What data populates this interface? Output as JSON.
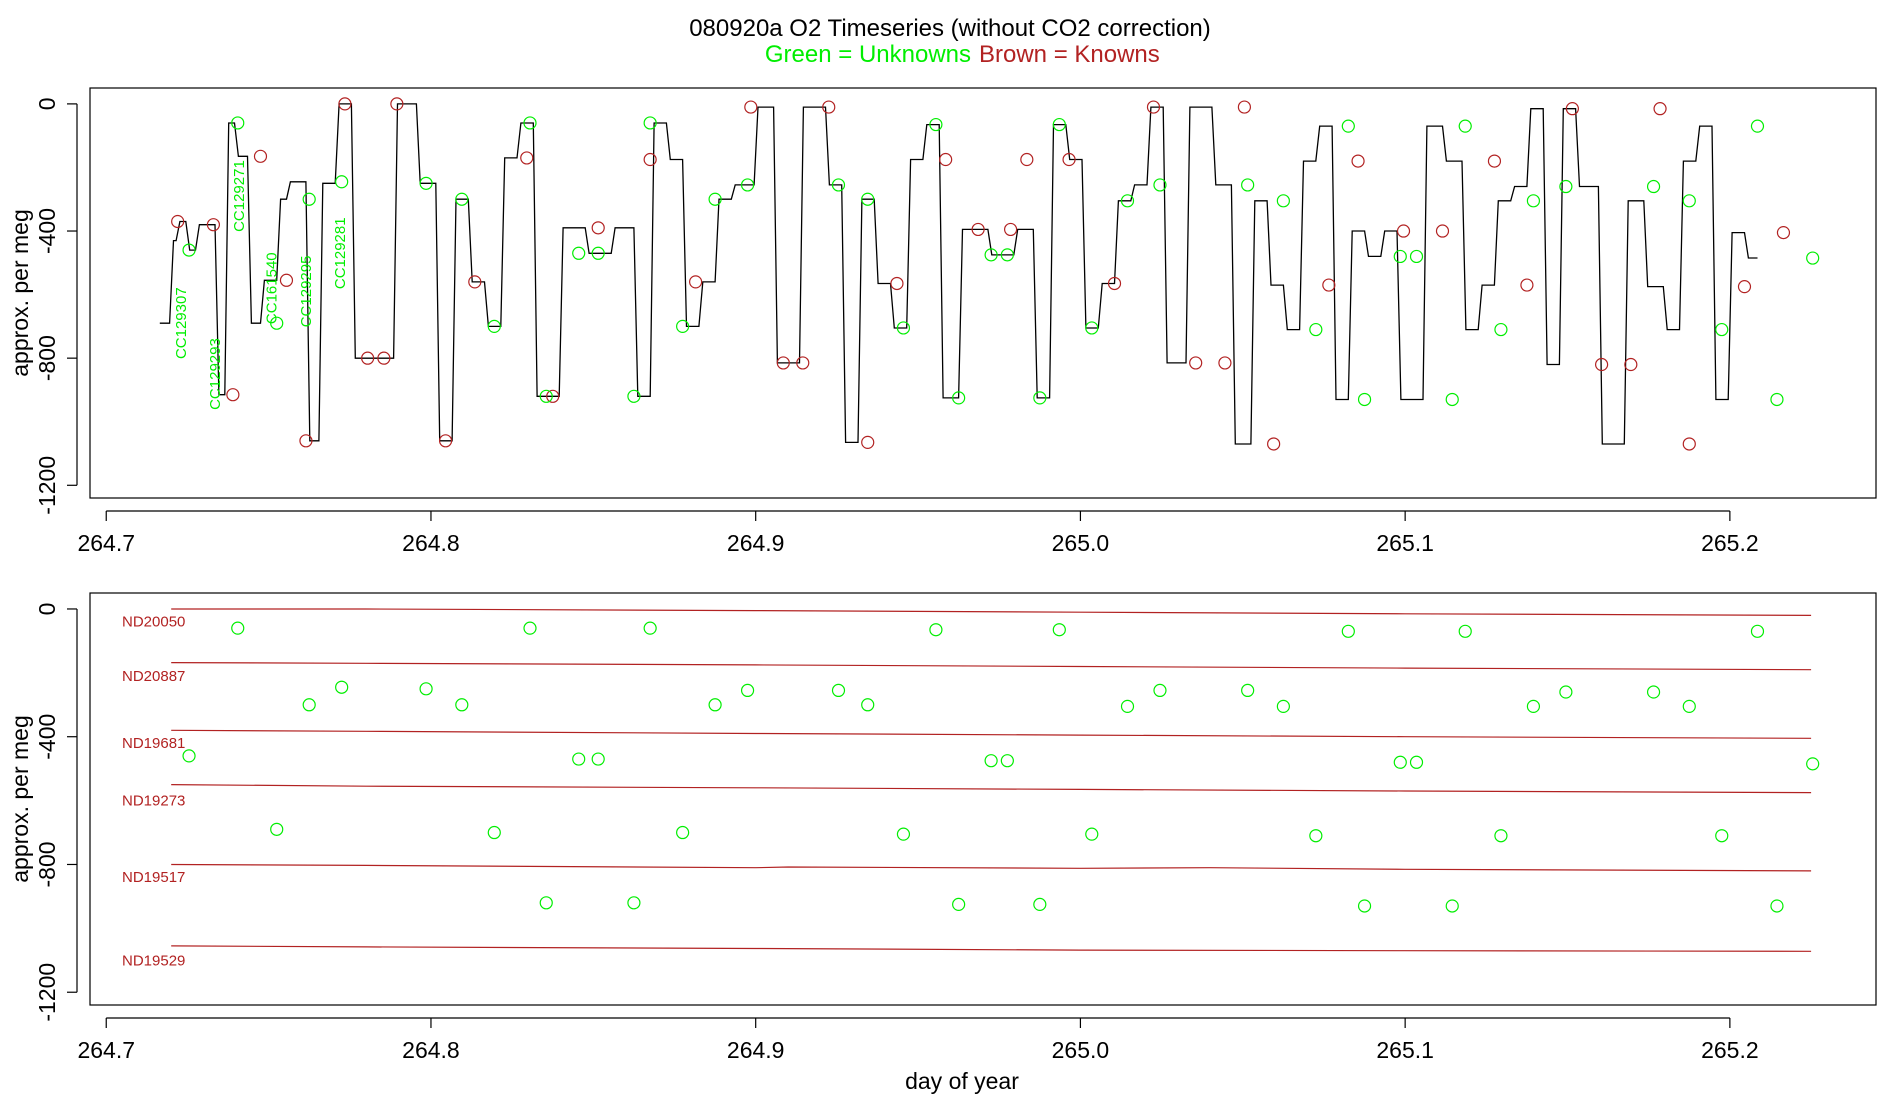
{
  "chart_data": [
    {
      "type": "line",
      "title": "080920a   O2 Timeseries (without CO2 correction)",
      "subtitle_green": "Green = Unknowns",
      "subtitle_brown": "Brown = Knowns",
      "xlabel": "",
      "ylabel": "approx. per meg",
      "xlim": [
        264.695,
        265.245
      ],
      "ylim": [
        -1240,
        50
      ],
      "xticks": [
        264.7,
        264.8,
        264.9,
        265.0,
        265.1,
        265.2
      ],
      "xtick_labels": [
        "264.7",
        "264.8",
        "264.9",
        "265.0",
        "265.1",
        "265.2"
      ],
      "yticks": [
        0,
        -400,
        -800,
        -1200
      ],
      "ytick_labels": [
        "0",
        "-400",
        "-800",
        "-1200"
      ],
      "grid": false,
      "colors": {
        "unknown": "#00ee00",
        "known": "#b22222",
        "trace": "#000000"
      },
      "series": [
        {
          "name": "trace",
          "step_x": [
            264.7165,
            264.7195,
            264.7215,
            264.7245,
            264.7275,
            264.7305,
            264.7335,
            264.7365,
            264.7395,
            264.7435,
            264.7475,
            264.7525,
            264.7555,
            264.7615,
            264.7655,
            264.7705,
            264.7755,
            264.7825,
            264.7885,
            264.7955,
            264.8015,
            264.8065,
            264.8115,
            264.8165,
            264.8215,
            264.8265,
            264.8315,
            264.8395,
            264.8475,
            264.8555,
            264.8625,
            264.8675,
            264.8725,
            264.8775,
            264.8825,
            264.8875,
            264.8925,
            264.8995,
            264.9055,
            264.9135,
            264.9215,
            264.9265,
            264.9315,
            264.9365,
            264.9415,
            264.9465,
            264.9515,
            264.9565,
            264.9625,
            264.9715,
            264.9795,
            264.9855,
            264.9905,
            264.9955,
            265.0005,
            265.0055,
            265.0105,
            265.0155,
            265.0205,
            265.0255,
            265.0325,
            265.0405,
            265.0465,
            265.0525,
            265.0575,
            265.0625,
            265.0675,
            265.0725,
            265.0775,
            265.0825,
            265.0875,
            265.0925,
            265.0975,
            265.1055,
            265.1115,
            265.1175,
            265.1225,
            265.1275,
            265.1325,
            265.1375,
            265.1425,
            265.1475,
            265.1525,
            265.1595,
            265.1675,
            265.1735,
            265.1795,
            265.1845,
            265.1895,
            265.1945,
            265.1995,
            265.2045,
            265.2085,
            265.2125,
            265.2175,
            265.2215,
            265.2255
          ],
          "step_y": [
            -690,
            -430,
            -370,
            -460,
            -380,
            -380,
            -915,
            -60,
            -165,
            -690,
            -555,
            -300,
            -245,
            -1060,
            -250,
            0,
            -800,
            -800,
            0,
            -250,
            -1060,
            -300,
            -560,
            -700,
            -170,
            -60,
            -920,
            -390,
            -470,
            -390,
            -920,
            -60,
            -175,
            -700,
            -560,
            -300,
            -255,
            -10,
            -815,
            -10,
            -255,
            -1065,
            -300,
            -565,
            -705,
            -175,
            -65,
            -925,
            -395,
            -475,
            -395,
            -925,
            -65,
            -175,
            -705,
            -565,
            -305,
            -255,
            -10,
            -815,
            -10,
            -255,
            -1070,
            -305,
            -570,
            -710,
            -180,
            -70,
            -930,
            -400,
            -480,
            -400,
            -930,
            -70,
            -180,
            -710,
            -570,
            -305,
            -260,
            -15,
            -820,
            -15,
            -260,
            -1070,
            -305,
            -575,
            -710,
            -180,
            -70,
            -930,
            -405,
            -485
          ]
        },
        {
          "name": "Knowns",
          "x": [
            264.722,
            264.733,
            264.739,
            264.7475,
            264.7555,
            264.7615,
            264.7735,
            264.7805,
            264.7855,
            264.7895,
            264.8045,
            264.8135,
            264.8295,
            264.8375,
            264.8515,
            264.8675,
            264.8815,
            264.8985,
            264.9085,
            264.9145,
            264.9225,
            264.9345,
            264.9435,
            264.9585,
            264.9685,
            264.9785,
            264.9835,
            264.9965,
            265.0105,
            265.0225,
            265.0355,
            265.0445,
            265.0505,
            265.0595,
            265.0765,
            265.0855,
            265.0995,
            265.1115,
            265.1275,
            265.1375,
            265.1515,
            265.1605,
            265.1695,
            265.1785,
            265.1875,
            265.2045,
            265.2165
          ],
          "y": [
            -370,
            -380,
            -915,
            -165,
            -555,
            -1060,
            0,
            -800,
            -800,
            0,
            -1060,
            -560,
            -170,
            -920,
            -390,
            -175,
            -560,
            -10,
            -815,
            -815,
            -10,
            -1065,
            -565,
            -175,
            -395,
            -395,
            -175,
            -175,
            -565,
            -10,
            -815,
            -815,
            -10,
            -1070,
            -570,
            -180,
            -400,
            -400,
            -180,
            -570,
            -15,
            -820,
            -820,
            -15,
            -1070,
            -575,
            -405
          ]
        },
        {
          "name": "Unknowns",
          "x": [
            264.7255,
            264.7405,
            264.7525,
            264.7625,
            264.7725,
            264.7985,
            264.8095,
            264.8195,
            264.8305,
            264.8355,
            264.8455,
            264.8515,
            264.8625,
            264.8675,
            264.8775,
            264.8875,
            264.8975,
            264.9255,
            264.9345,
            264.9455,
            264.9555,
            264.9625,
            264.9725,
            264.9775,
            264.9875,
            264.9935,
            265.0035,
            265.0145,
            265.0245,
            265.0515,
            265.0625,
            265.0725,
            265.0825,
            265.0875,
            265.0985,
            265.1035,
            265.1145,
            265.1185,
            265.1295,
            265.1395,
            265.1495,
            265.1765,
            265.1875,
            265.1975,
            265.2085,
            265.2145,
            265.2255
          ],
          "y": [
            -460,
            -60,
            -690,
            -300,
            -245,
            -250,
            -300,
            -700,
            -60,
            -920,
            -470,
            -470,
            -920,
            -60,
            -700,
            -300,
            -255,
            -255,
            -300,
            -705,
            -65,
            -925,
            -475,
            -475,
            -925,
            -65,
            -705,
            -305,
            -255,
            -255,
            -305,
            -710,
            -70,
            -930,
            -480,
            -480,
            -930,
            -70,
            -710,
            -305,
            -260,
            -260,
            -305,
            -710,
            -70,
            -930,
            -485
          ]
        },
        {
          "name": "sample labels",
          "labels": [
            "CC129307",
            "CC129293",
            "CC129271",
            "CC161540",
            "CC129295",
            "CC129281"
          ],
          "x": [
            264.7245,
            264.735,
            264.7425,
            264.7525,
            264.763,
            264.7735
          ],
          "y": [
            -690,
            -850,
            -290,
            -580,
            -590,
            -470
          ]
        }
      ]
    },
    {
      "type": "scatter",
      "title": "",
      "xlabel": "day of year",
      "ylabel": "approx. per meg",
      "xlim": [
        264.695,
        265.245
      ],
      "ylim": [
        -1240,
        50
      ],
      "xticks": [
        264.7,
        264.8,
        264.9,
        265.0,
        265.1,
        265.2
      ],
      "xtick_labels": [
        "264.7",
        "264.8",
        "264.9",
        "265.0",
        "265.1",
        "265.2"
      ],
      "yticks": [
        0,
        -400,
        -800,
        -1200
      ],
      "ytick_labels": [
        "0",
        "-400",
        "-800",
        "-1200"
      ],
      "grid": false,
      "series": [
        {
          "name": "ND20050",
          "x": [
            264.72,
            264.78,
            264.9,
            265.0,
            265.1,
            265.225
          ],
          "y": [
            0,
            0,
            -5,
            -10,
            -15,
            -20
          ]
        },
        {
          "name": "ND20887",
          "x": [
            264.72,
            264.78,
            264.9,
            265.0,
            265.1,
            265.225
          ],
          "y": [
            -168,
            -170,
            -175,
            -180,
            -185,
            -190
          ]
        },
        {
          "name": "ND19681",
          "x": [
            264.72,
            264.78,
            264.9,
            265.0,
            265.1,
            265.225
          ],
          "y": [
            -380,
            -383,
            -390,
            -395,
            -400,
            -405
          ]
        },
        {
          "name": "ND19273",
          "x": [
            264.72,
            264.78,
            264.9,
            265.0,
            265.1,
            265.225
          ],
          "y": [
            -550,
            -555,
            -560,
            -565,
            -570,
            -575
          ]
        },
        {
          "name": "ND19517",
          "x": [
            264.72,
            264.78,
            264.9,
            264.91,
            265.0,
            265.04,
            265.1,
            265.225
          ],
          "y": [
            -800,
            -803,
            -810,
            -808,
            -812,
            -810,
            -815,
            -820
          ]
        },
        {
          "name": "ND19529",
          "x": [
            264.72,
            264.78,
            264.9,
            265.0,
            265.1,
            265.225
          ],
          "y": [
            -1055,
            -1058,
            -1063,
            -1068,
            -1070,
            -1072
          ]
        },
        {
          "name": "Unknowns",
          "x": [
            264.7255,
            264.7405,
            264.7525,
            264.7625,
            264.7725,
            264.7985,
            264.8095,
            264.8195,
            264.8305,
            264.8355,
            264.8455,
            264.8515,
            264.8625,
            264.8675,
            264.8775,
            264.8875,
            264.8975,
            264.9255,
            264.9345,
            264.9455,
            264.9555,
            264.9625,
            264.9725,
            264.9775,
            264.9875,
            264.9935,
            265.0035,
            265.0145,
            265.0245,
            265.0515,
            265.0625,
            265.0725,
            265.0825,
            265.0875,
            265.0985,
            265.1035,
            265.1145,
            265.1185,
            265.1295,
            265.1395,
            265.1495,
            265.1765,
            265.1875,
            265.1975,
            265.2085,
            265.2145,
            265.2255
          ],
          "y": [
            -460,
            -60,
            -690,
            -300,
            -245,
            -250,
            -300,
            -700,
            -60,
            -920,
            -470,
            -470,
            -920,
            -60,
            -700,
            -300,
            -255,
            -255,
            -300,
            -705,
            -65,
            -925,
            -475,
            -475,
            -925,
            -65,
            -705,
            -305,
            -255,
            -255,
            -305,
            -710,
            -70,
            -930,
            -480,
            -480,
            -930,
            -70,
            -710,
            -305,
            -260,
            -260,
            -305,
            -710,
            -70,
            -930,
            -485
          ]
        }
      ],
      "reference_labels": [
        "ND20050",
        "ND20887",
        "ND19681",
        "ND19273",
        "ND19517",
        "ND19529"
      ],
      "reference_label_y": [
        -40,
        -210,
        -420,
        -600,
        -840,
        -1100
      ]
    }
  ]
}
